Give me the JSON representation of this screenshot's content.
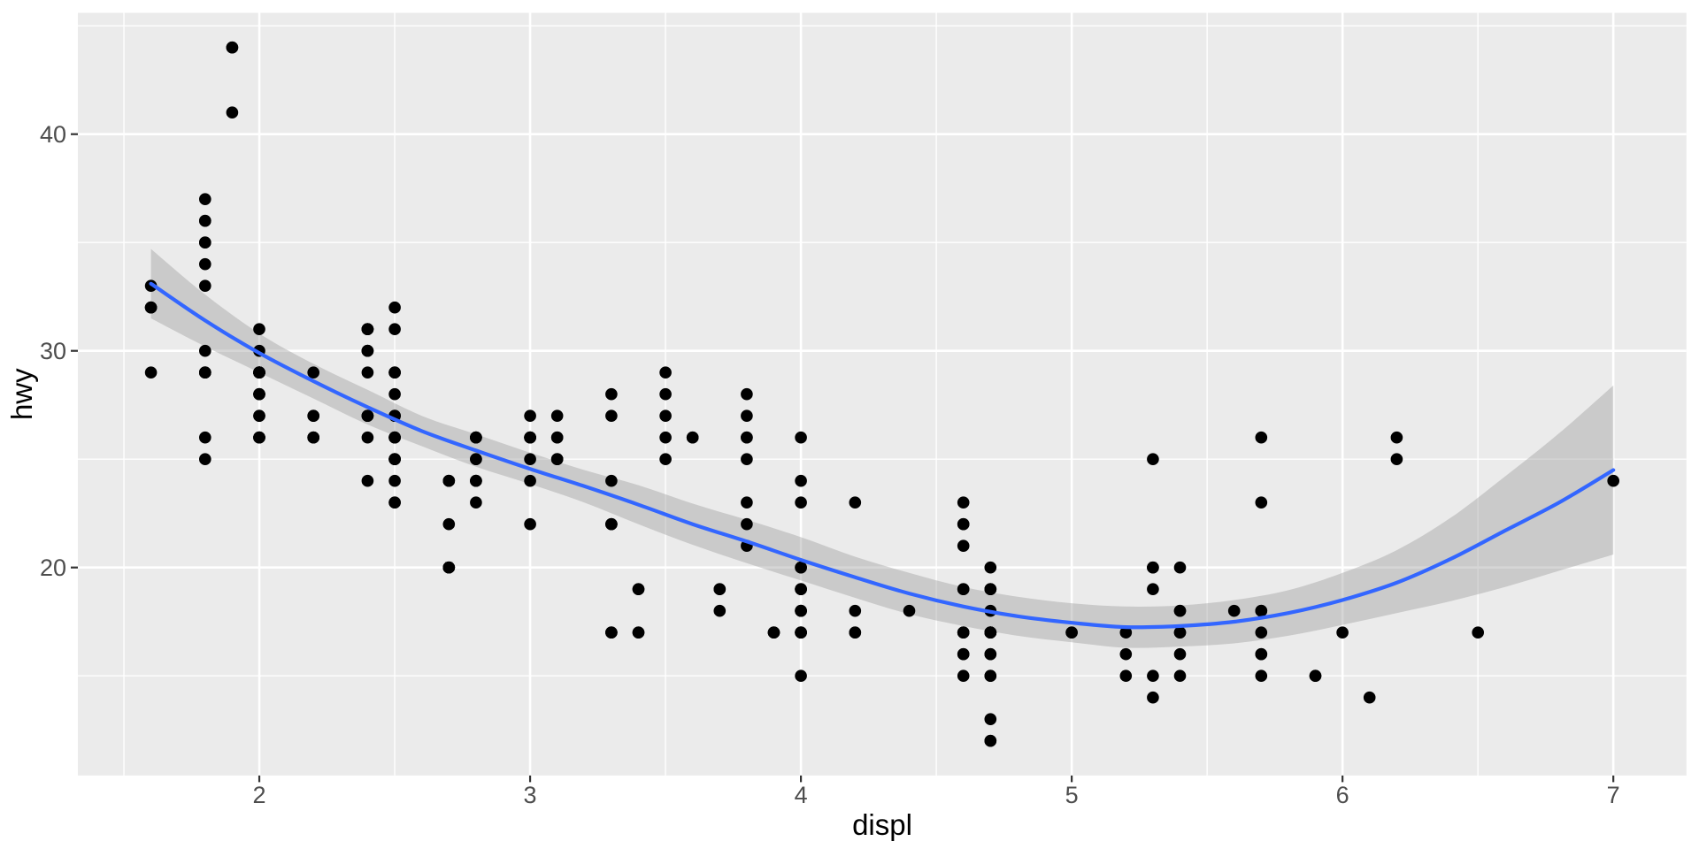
{
  "chart_data": {
    "type": "scatter",
    "title": "",
    "xlabel": "displ",
    "ylabel": "hwy",
    "xlim": [
      1.33,
      7.27
    ],
    "ylim": [
      10.4,
      45.6
    ],
    "x_ticks": [
      2,
      3,
      4,
      5,
      6,
      7
    ],
    "x_minor_ticks": [
      1.5,
      2.5,
      3.5,
      4.5,
      5.5,
      6.5
    ],
    "y_ticks": [
      20,
      30,
      40
    ],
    "y_minor_ticks": [
      15,
      25,
      35,
      45
    ],
    "grid": true,
    "legend": "none",
    "points": [
      [
        1.6,
        33
      ],
      [
        1.6,
        32
      ],
      [
        1.6,
        32
      ],
      [
        1.6,
        29
      ],
      [
        1.6,
        32
      ],
      [
        1.8,
        29
      ],
      [
        1.8,
        29
      ],
      [
        1.8,
        26
      ],
      [
        1.8,
        25
      ],
      [
        1.8,
        34
      ],
      [
        1.8,
        36
      ],
      [
        1.8,
        36
      ],
      [
        1.8,
        30
      ],
      [
        1.8,
        33
      ],
      [
        1.8,
        35
      ],
      [
        1.8,
        37
      ],
      [
        1.8,
        35
      ],
      [
        1.8,
        29
      ],
      [
        1.8,
        29
      ],
      [
        1.9,
        44
      ],
      [
        1.9,
        44
      ],
      [
        1.9,
        41
      ],
      [
        2.0,
        31
      ],
      [
        2.0,
        30
      ],
      [
        2.0,
        28
      ],
      [
        2.0,
        27
      ],
      [
        2.0,
        29
      ],
      [
        2.0,
        26
      ],
      [
        2.0,
        29
      ],
      [
        2.0,
        28
      ],
      [
        2.0,
        27
      ],
      [
        2.0,
        29
      ],
      [
        2.0,
        26
      ],
      [
        2.0,
        29
      ],
      [
        2.0,
        29
      ],
      [
        2.0,
        29
      ],
      [
        2.0,
        26
      ],
      [
        2.0,
        29
      ],
      [
        2.0,
        29
      ],
      [
        2.0,
        29
      ],
      [
        2.0,
        26
      ],
      [
        2.0,
        28
      ],
      [
        2.0,
        29
      ],
      [
        2.2,
        26
      ],
      [
        2.2,
        26
      ],
      [
        2.2,
        29
      ],
      [
        2.2,
        27
      ],
      [
        2.2,
        27
      ],
      [
        2.2,
        26
      ],
      [
        2.4,
        27
      ],
      [
        2.4,
        30
      ],
      [
        2.4,
        24
      ],
      [
        2.4,
        26
      ],
      [
        2.4,
        27
      ],
      [
        2.4,
        30
      ],
      [
        2.4,
        31
      ],
      [
        2.4,
        29
      ],
      [
        2.4,
        27
      ],
      [
        2.4,
        30
      ],
      [
        2.4,
        31
      ],
      [
        2.4,
        31
      ],
      [
        2.4,
        31
      ],
      [
        2.5,
        26
      ],
      [
        2.5,
        26
      ],
      [
        2.5,
        31
      ],
      [
        2.5,
        32
      ],
      [
        2.5,
        25
      ],
      [
        2.5,
        24
      ],
      [
        2.5,
        27
      ],
      [
        2.5,
        25
      ],
      [
        2.5,
        26
      ],
      [
        2.5,
        23
      ],
      [
        2.5,
        26
      ],
      [
        2.5,
        25
      ],
      [
        2.5,
        27
      ],
      [
        2.5,
        25
      ],
      [
        2.5,
        27
      ],
      [
        2.5,
        23
      ],
      [
        2.5,
        29
      ],
      [
        2.5,
        29
      ],
      [
        2.5,
        28
      ],
      [
        2.5,
        29
      ],
      [
        2.7,
        24
      ],
      [
        2.7,
        24
      ],
      [
        2.7,
        24
      ],
      [
        2.7,
        20
      ],
      [
        2.7,
        20
      ],
      [
        2.7,
        20
      ],
      [
        2.7,
        20
      ],
      [
        2.7,
        22
      ],
      [
        2.8,
        26
      ],
      [
        2.8,
        26
      ],
      [
        2.8,
        25
      ],
      [
        2.8,
        25
      ],
      [
        2.8,
        24
      ],
      [
        2.8,
        24
      ],
      [
        2.8,
        23
      ],
      [
        2.8,
        24
      ],
      [
        2.8,
        26
      ],
      [
        2.8,
        26
      ],
      [
        3.0,
        24
      ],
      [
        3.0,
        26
      ],
      [
        3.0,
        25
      ],
      [
        3.0,
        26
      ],
      [
        3.0,
        26
      ],
      [
        3.0,
        26
      ],
      [
        3.0,
        27
      ],
      [
        3.0,
        22
      ],
      [
        3.1,
        27
      ],
      [
        3.1,
        25
      ],
      [
        3.1,
        25
      ],
      [
        3.1,
        25
      ],
      [
        3.1,
        26
      ],
      [
        3.1,
        26
      ],
      [
        3.3,
        22
      ],
      [
        3.3,
        22
      ],
      [
        3.3,
        24
      ],
      [
        3.3,
        22
      ],
      [
        3.3,
        17
      ],
      [
        3.3,
        28
      ],
      [
        3.3,
        17
      ],
      [
        3.3,
        17
      ],
      [
        3.3,
        27
      ],
      [
        3.4,
        19
      ],
      [
        3.4,
        17
      ],
      [
        3.4,
        17
      ],
      [
        3.4,
        19
      ],
      [
        3.5,
        29
      ],
      [
        3.5,
        27
      ],
      [
        3.5,
        26
      ],
      [
        3.5,
        25
      ],
      [
        3.5,
        28
      ],
      [
        3.6,
        26
      ],
      [
        3.6,
        26
      ],
      [
        3.7,
        19
      ],
      [
        3.7,
        18
      ],
      [
        3.7,
        19
      ],
      [
        3.8,
        22
      ],
      [
        3.8,
        21
      ],
      [
        3.8,
        23
      ],
      [
        3.8,
        26
      ],
      [
        3.8,
        25
      ],
      [
        3.8,
        26
      ],
      [
        3.8,
        27
      ],
      [
        3.8,
        28
      ],
      [
        3.9,
        17
      ],
      [
        3.9,
        17
      ],
      [
        3.9,
        17
      ],
      [
        4.0,
        26
      ],
      [
        4.0,
        24
      ],
      [
        4.0,
        23
      ],
      [
        4.0,
        20
      ],
      [
        4.0,
        20
      ],
      [
        4.0,
        19
      ],
      [
        4.0,
        19
      ],
      [
        4.0,
        19
      ],
      [
        4.0,
        18
      ],
      [
        4.0,
        18
      ],
      [
        4.0,
        18
      ],
      [
        4.0,
        17
      ],
      [
        4.0,
        17
      ],
      [
        4.0,
        17
      ],
      [
        4.0,
        17
      ],
      [
        4.0,
        15
      ],
      [
        4.2,
        23
      ],
      [
        4.2,
        17
      ],
      [
        4.2,
        17
      ],
      [
        4.2,
        18
      ],
      [
        4.4,
        18
      ],
      [
        4.6,
        17
      ],
      [
        4.6,
        19
      ],
      [
        4.6,
        16
      ],
      [
        4.6,
        17
      ],
      [
        4.6,
        17
      ],
      [
        4.6,
        16
      ],
      [
        4.6,
        21
      ],
      [
        4.6,
        22
      ],
      [
        4.6,
        23
      ],
      [
        4.6,
        22
      ],
      [
        4.6,
        19
      ],
      [
        4.6,
        15
      ],
      [
        4.7,
        20
      ],
      [
        4.7,
        19
      ],
      [
        4.7,
        19
      ],
      [
        4.7,
        19
      ],
      [
        4.7,
        18
      ],
      [
        4.7,
        17
      ],
      [
        4.7,
        17
      ],
      [
        4.7,
        17
      ],
      [
        4.7,
        17
      ],
      [
        4.7,
        17
      ],
      [
        4.7,
        17
      ],
      [
        4.7,
        16
      ],
      [
        4.7,
        16
      ],
      [
        4.7,
        15
      ],
      [
        4.7,
        15
      ],
      [
        4.7,
        13
      ],
      [
        4.7,
        12
      ],
      [
        4.7,
        12
      ],
      [
        5.0,
        17
      ],
      [
        5.0,
        17
      ],
      [
        5.2,
        17
      ],
      [
        5.2,
        16
      ],
      [
        5.2,
        15
      ],
      [
        5.3,
        20
      ],
      [
        5.3,
        15
      ],
      [
        5.3,
        20
      ],
      [
        5.3,
        19
      ],
      [
        5.3,
        14
      ],
      [
        5.3,
        25
      ],
      [
        5.4,
        20
      ],
      [
        5.4,
        18
      ],
      [
        5.4,
        18
      ],
      [
        5.4,
        17
      ],
      [
        5.4,
        17
      ],
      [
        5.4,
        16
      ],
      [
        5.4,
        15
      ],
      [
        5.6,
        18
      ],
      [
        5.7,
        17
      ],
      [
        5.7,
        26
      ],
      [
        5.7,
        23
      ],
      [
        5.7,
        15
      ],
      [
        5.7,
        16
      ],
      [
        5.7,
        16
      ],
      [
        5.7,
        18
      ],
      [
        5.7,
        18
      ],
      [
        5.9,
        15
      ],
      [
        5.9,
        15
      ],
      [
        6.0,
        17
      ],
      [
        6.1,
        14
      ],
      [
        6.2,
        26
      ],
      [
        6.2,
        25
      ],
      [
        6.5,
        17
      ],
      [
        7.0,
        24
      ]
    ],
    "smooth": {
      "method": "loess",
      "x": [
        1.6,
        1.8,
        2.0,
        2.2,
        2.4,
        2.6,
        2.8,
        3.0,
        3.2,
        3.4,
        3.6,
        3.8,
        4.0,
        4.2,
        4.4,
        4.6,
        4.8,
        5.0,
        5.2,
        5.4,
        5.6,
        5.8,
        6.0,
        6.2,
        6.4,
        6.6,
        6.8,
        7.0
      ],
      "y": [
        33.1,
        31.4,
        29.9,
        28.6,
        27.4,
        26.3,
        25.4,
        24.55,
        23.75,
        22.9,
        22.0,
        21.2,
        20.35,
        19.55,
        18.8,
        18.2,
        17.75,
        17.45,
        17.25,
        17.3,
        17.5,
        17.9,
        18.5,
        19.3,
        20.4,
        21.7,
        23.0,
        24.5
      ],
      "ci_lower": [
        31.5,
        30.2,
        29.0,
        27.8,
        26.6,
        25.6,
        24.65,
        23.85,
        23.0,
        22.0,
        21.05,
        20.2,
        19.4,
        18.6,
        17.85,
        17.3,
        16.85,
        16.55,
        16.3,
        16.35,
        16.5,
        16.85,
        17.35,
        17.9,
        18.45,
        19.1,
        19.85,
        20.6
      ],
      "ci_upper": [
        34.7,
        32.6,
        30.8,
        29.4,
        28.2,
        27.0,
        26.15,
        25.3,
        24.5,
        23.8,
        22.95,
        22.2,
        21.4,
        20.5,
        19.75,
        19.1,
        18.65,
        18.35,
        18.2,
        18.25,
        18.5,
        18.95,
        19.75,
        20.8,
        22.3,
        24.2,
        26.2,
        28.4
      ]
    },
    "style": {
      "panel_bg": "#EBEBEB",
      "outer_bg": "#FFFFFF",
      "grid_color": "#FFFFFF",
      "major_grid_width": 2.6,
      "minor_grid_width": 1.4,
      "point_color": "#000000",
      "point_radius": 6.8,
      "line_color": "#3366FF",
      "line_width": 4.2,
      "band_color": "#999999",
      "band_opacity": 0.4,
      "tick_mark_color": "#333333",
      "tick_label_color": "#4D4D4D",
      "axis_title_color": "#000000"
    }
  }
}
